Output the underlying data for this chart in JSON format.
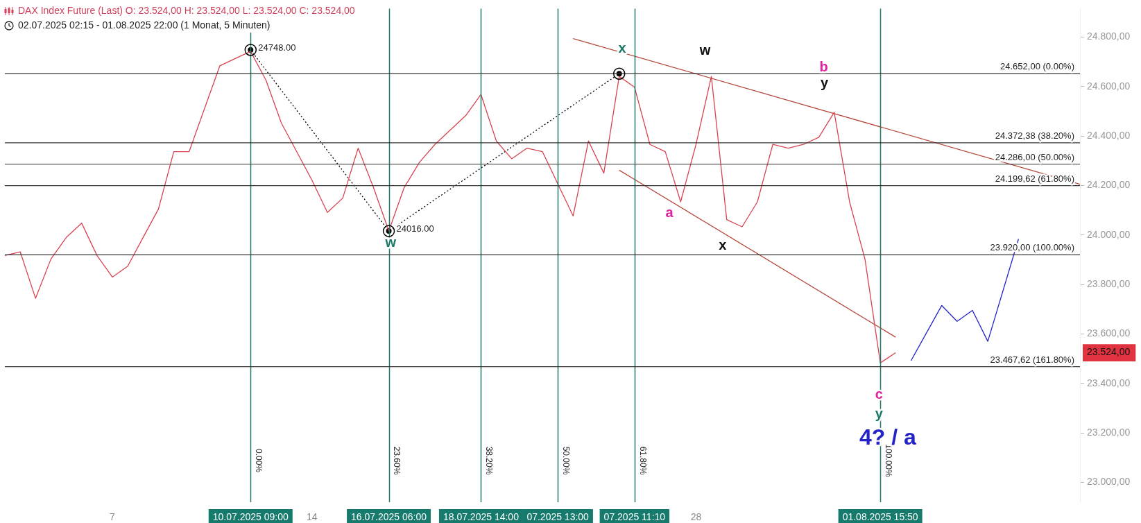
{
  "chart_data": {
    "type": "line",
    "title": "DAX Index Future (Last)  O: 23.524,00  H: 23.524,00  L: 23.524,00  C: 23.524,00",
    "subtitle": "02.07.2025 02:15 - 01.08.2025 22:00  (1 Monat, 5 Minuten)",
    "categories": [
      null,
      null,
      null,
      null,
      null,
      null,
      null,
      "7",
      null,
      null,
      null,
      null,
      null,
      null,
      null,
      null,
      "10.07.2025 09:00",
      null,
      null,
      null,
      "14",
      null,
      null,
      null,
      null,
      "16.07.2025 06:00",
      null,
      null,
      null,
      null,
      null,
      "18.07.2025 14:00",
      null,
      null,
      null,
      null,
      "07.2025 13:00",
      null,
      null,
      null,
      null,
      "07.2025 11:10",
      null,
      null,
      null,
      "28",
      null,
      null,
      null,
      null,
      null,
      null,
      null,
      null,
      null,
      null,
      null,
      "01.08.2025 15:50",
      null,
      null,
      null,
      null,
      null,
      null,
      null,
      null,
      null,
      null,
      null,
      null,
      null
    ],
    "ylim": [
      22920,
      24915
    ],
    "yticks": [
      {
        "value": 23000,
        "label": "23.000,00"
      },
      {
        "value": 23200,
        "label": "23.200,00"
      },
      {
        "value": 23400,
        "label": "23.400,00"
      },
      {
        "value": 23524,
        "label": "23.524,00"
      },
      {
        "value": 23600,
        "label": "23.600,00"
      },
      {
        "value": 23800,
        "label": "23.800,00"
      },
      {
        "value": 24000,
        "label": "24.000,00"
      },
      {
        "value": 24200,
        "label": "24.200,00"
      },
      {
        "value": 24400,
        "label": "24.400,00"
      },
      {
        "value": 24600,
        "label": "24.600,00"
      },
      {
        "value": 24800,
        "label": "24.800,00"
      }
    ],
    "series": [
      {
        "color": "#d9434f",
        "values": [
          23917,
          23932,
          23744,
          23903,
          23990,
          24048,
          23917,
          23830,
          23874,
          23990,
          24105,
          24337,
          24337,
          24511,
          24684,
          24713,
          24742,
          24626,
          24453,
          24337,
          24221,
          24091,
          24149,
          24351,
          24192,
          24016,
          24192,
          24294,
          24366,
          null,
          24482,
          24568,
          24380,
          24308,
          24351,
          24337,
          24207,
          24077,
          24380,
          24250,
          24641,
          24597,
          24366,
          24337,
          24134,
          24366,
          24641,
          24062,
          24033,
          24134,
          24366,
          24351,
          24366,
          24395,
          24496,
          24134,
          23903,
          23483,
          23524,
          null,
          null,
          null,
          null,
          null,
          null,
          null,
          null,
          null,
          null,
          null,
          null
        ]
      },
      {
        "type": "line",
        "color": "#000000",
        "line_style": "dotted",
        "marker": "circle",
        "values": [
          null,
          null,
          null,
          null,
          null,
          null,
          null,
          null,
          null,
          null,
          null,
          null,
          null,
          null,
          null,
          null,
          24748,
          null,
          null,
          null,
          null,
          null,
          null,
          null,
          null,
          24016,
          null,
          null,
          null,
          null,
          null,
          null,
          null,
          null,
          null,
          null,
          null,
          null,
          null,
          null,
          24652,
          null,
          null,
          null,
          null,
          null,
          null,
          null,
          null,
          null,
          null,
          null,
          null,
          null,
          null,
          null,
          null,
          null,
          null,
          null,
          null,
          null,
          null,
          null,
          null,
          null,
          null,
          null,
          null,
          null,
          null
        ],
        "value_labels": [
          null,
          null,
          null,
          null,
          null,
          null,
          null,
          null,
          null,
          null,
          null,
          null,
          null,
          null,
          null,
          null,
          "24748.00",
          null,
          null,
          null,
          null,
          null,
          null,
          null,
          null,
          "24016.00",
          null,
          null,
          null,
          null,
          null,
          null,
          null,
          null,
          null,
          null,
          null,
          null,
          null,
          null,
          null,
          null,
          null,
          null,
          null,
          null,
          null,
          null,
          null,
          null,
          null,
          null,
          null,
          null,
          null,
          null,
          null,
          null,
          null,
          null,
          null,
          null,
          null,
          null,
          null,
          null,
          null,
          null,
          null,
          null,
          null
        ]
      },
      {
        "type": "line",
        "color": "#b5483b",
        "values": [
          null,
          null,
          null,
          null,
          null,
          null,
          null,
          null,
          null,
          null,
          null,
          null,
          null,
          null,
          null,
          null,
          null,
          null,
          null,
          null,
          null,
          null,
          null,
          null,
          null,
          null,
          null,
          null,
          null,
          null,
          null,
          null,
          null,
          null,
          null,
          null,
          null,
          24794,
          null,
          null,
          null,
          null,
          null,
          null,
          null,
          null,
          null,
          null,
          null,
          null,
          null,
          null,
          null,
          null,
          null,
          null,
          null,
          null,
          null,
          null,
          null,
          null,
          null,
          null,
          null,
          null,
          null,
          null,
          null,
          null,
          24205
        ]
      },
      {
        "type": "line",
        "color": "#b5483b",
        "values": [
          null,
          null,
          null,
          null,
          null,
          null,
          null,
          null,
          null,
          null,
          null,
          null,
          null,
          null,
          null,
          null,
          null,
          null,
          null,
          null,
          null,
          null,
          null,
          null,
          null,
          null,
          null,
          null,
          null,
          null,
          null,
          null,
          null,
          null,
          null,
          null,
          null,
          null,
          null,
          null,
          24262,
          null,
          null,
          null,
          null,
          null,
          null,
          null,
          null,
          null,
          null,
          null,
          null,
          null,
          null,
          null,
          null,
          null,
          23587,
          null,
          null,
          null,
          null,
          null,
          null,
          null,
          null,
          null,
          null,
          null,
          null
        ]
      },
      {
        "type": "line",
        "color": "#2323c8",
        "values": [
          null,
          null,
          null,
          null,
          null,
          null,
          null,
          null,
          null,
          null,
          null,
          null,
          null,
          null,
          null,
          null,
          null,
          null,
          null,
          null,
          null,
          null,
          null,
          null,
          null,
          null,
          null,
          null,
          null,
          null,
          null,
          null,
          null,
          null,
          null,
          null,
          null,
          null,
          null,
          null,
          null,
          null,
          null,
          null,
          null,
          null,
          null,
          null,
          null,
          null,
          null,
          null,
          null,
          null,
          null,
          null,
          null,
          null,
          null,
          23492,
          null,
          23715,
          23651,
          23695,
          23570,
          null,
          23984,
          null,
          null,
          null,
          null
        ]
      }
    ],
    "ref_lines": [
      {
        "axis": "x",
        "value": "10.07.2025 09:00",
        "label": "0.00%",
        "color": "#1f7a6c"
      },
      {
        "axis": "x",
        "value": "16.07.2025 06:00",
        "label": "23.60%",
        "color": "#1f7a6c"
      },
      {
        "axis": "x",
        "value": "18.07.2025 14:00",
        "label": "38.20%",
        "color": "#1f7a6c"
      },
      {
        "axis": "x",
        "value": "07.2025 13:00",
        "label": "50.00%",
        "color": "#1f7a6c"
      },
      {
        "axis": "x",
        "value": "07.2025 11:10",
        "label": "61.80%",
        "color": "#1f7a6c"
      },
      {
        "axis": "x",
        "value": "01.08.2025 15:50",
        "label": "100.00%",
        "color": "#1f7a6c"
      },
      {
        "axis": "y",
        "value": 24652,
        "label": "24.652,00 (0.00%)",
        "color": "#333333"
      },
      {
        "axis": "y",
        "value": 24372.38,
        "label": "24.372,38 (38.20%)",
        "color": "#333333"
      },
      {
        "axis": "y",
        "value": 24286,
        "label": "24.286,00 (50.00%)",
        "color": "#333333"
      },
      {
        "axis": "y",
        "value": 24199.62,
        "label": "24.199,62 (61.80%)",
        "color": "#333333"
      },
      {
        "axis": "y",
        "value": 23920,
        "label": "23.920,00 (100.00%)",
        "color": "#333333"
      },
      {
        "axis": "y",
        "value": 23467.62,
        "label": "23.467,62 (161.80%)",
        "color": "#333333"
      }
    ],
    "annotations": [
      "x",
      "w",
      "b",
      "y",
      "a",
      "x",
      "w",
      "c",
      "y",
      "4? / a"
    ]
  }
}
